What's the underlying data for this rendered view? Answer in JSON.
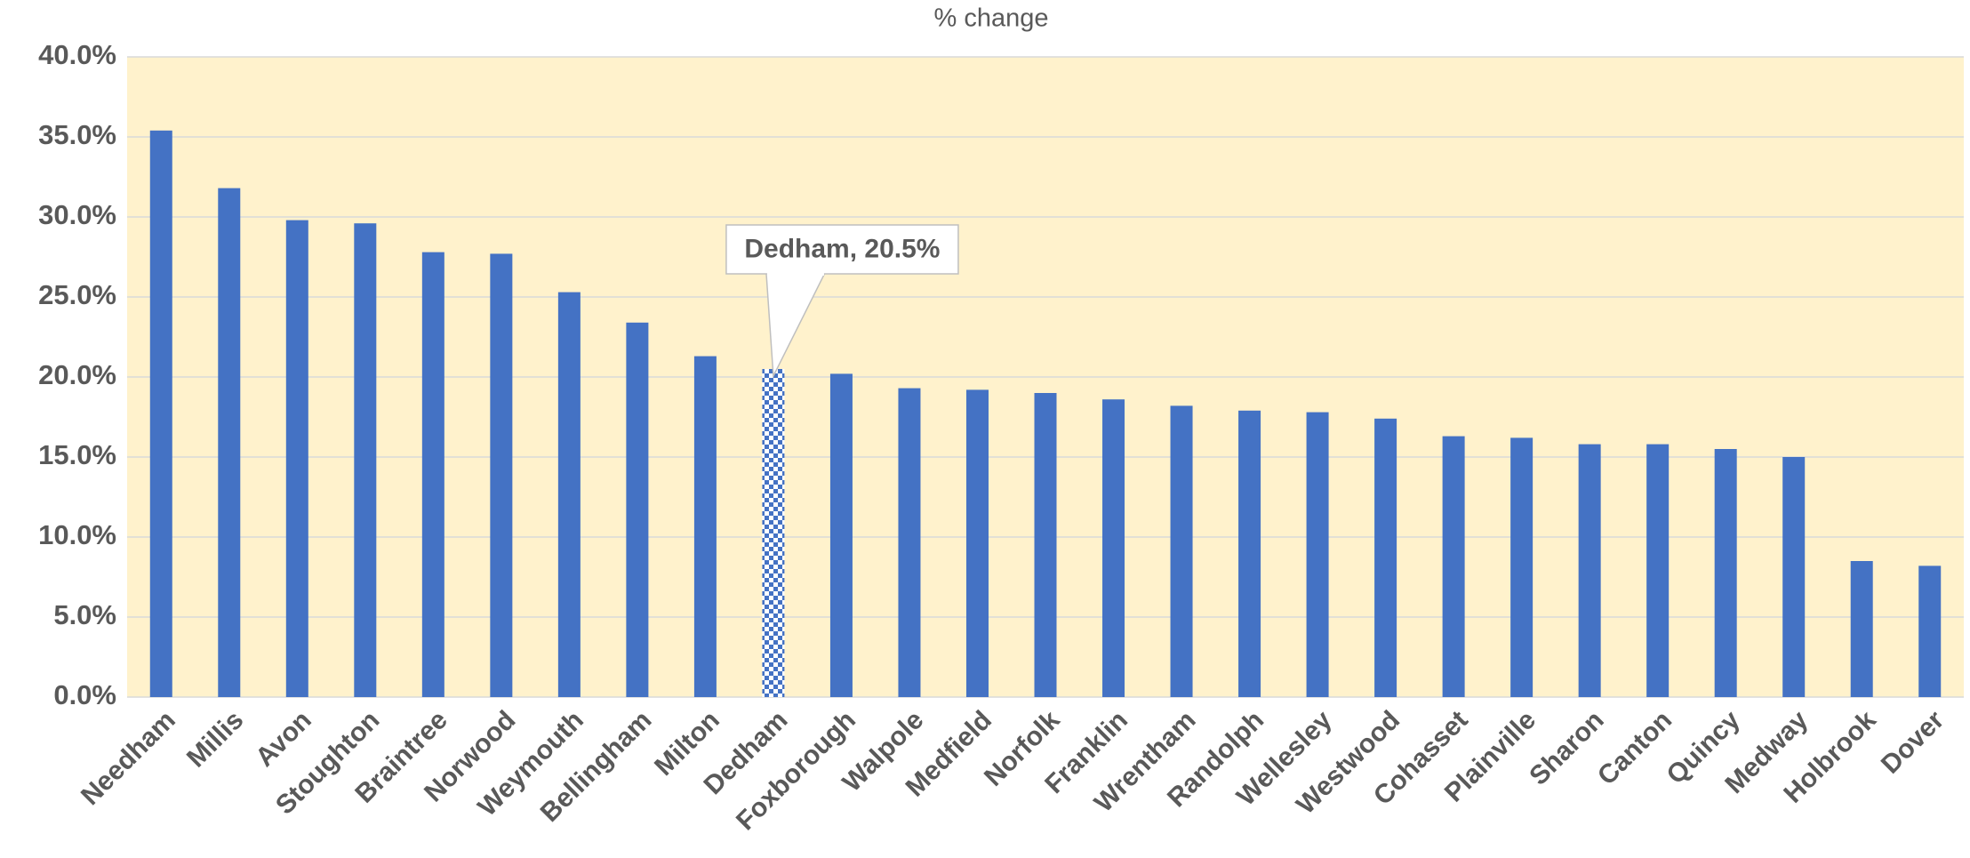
{
  "chart_data": {
    "type": "bar",
    "title": "% change",
    "categories": [
      "Needham",
      "Millis",
      "Avon",
      "Stoughton",
      "Braintree",
      "Norwood",
      "Weymouth",
      "Bellingham",
      "Milton",
      "Dedham",
      "Foxborough",
      "Walpole",
      "Medfield",
      "Norfolk",
      "Franklin",
      "Wrentham",
      "Randolph",
      "Wellesley",
      "Westwood",
      "Cohasset",
      "Plainville",
      "Sharon",
      "Canton",
      "Quincy",
      "Medway",
      "Holbrook",
      "Dover"
    ],
    "values": [
      35.4,
      31.8,
      29.8,
      29.6,
      27.8,
      27.7,
      25.3,
      23.4,
      21.3,
      20.5,
      20.2,
      19.3,
      19.2,
      19.0,
      18.6,
      18.2,
      17.9,
      17.8,
      17.4,
      16.3,
      16.2,
      15.8,
      15.8,
      15.5,
      15.0,
      8.5,
      8.2
    ],
    "value_labels": [
      null,
      null,
      null,
      null,
      null,
      null,
      null,
      null,
      null,
      "Dedham, 20.5%",
      null,
      null,
      null,
      null,
      null,
      null,
      null,
      null,
      null,
      null,
      null,
      null,
      null,
      null,
      null,
      null,
      null
    ],
    "color": "#4472c4",
    "ylim": [
      0,
      40
    ],
    "yticks": [
      {
        "value": 0,
        "label": "0.0%"
      },
      {
        "value": 5,
        "label": "5.0%"
      },
      {
        "value": 10,
        "label": "10.0%"
      },
      {
        "value": 15,
        "label": "15.0%"
      },
      {
        "value": 20,
        "label": "20.0%"
      },
      {
        "value": 25,
        "label": "25.0%"
      },
      {
        "value": 30,
        "label": "30.0%"
      },
      {
        "value": 35,
        "label": "35.0%"
      },
      {
        "value": 40,
        "label": "40.0%"
      }
    ],
    "grid": true
  }
}
